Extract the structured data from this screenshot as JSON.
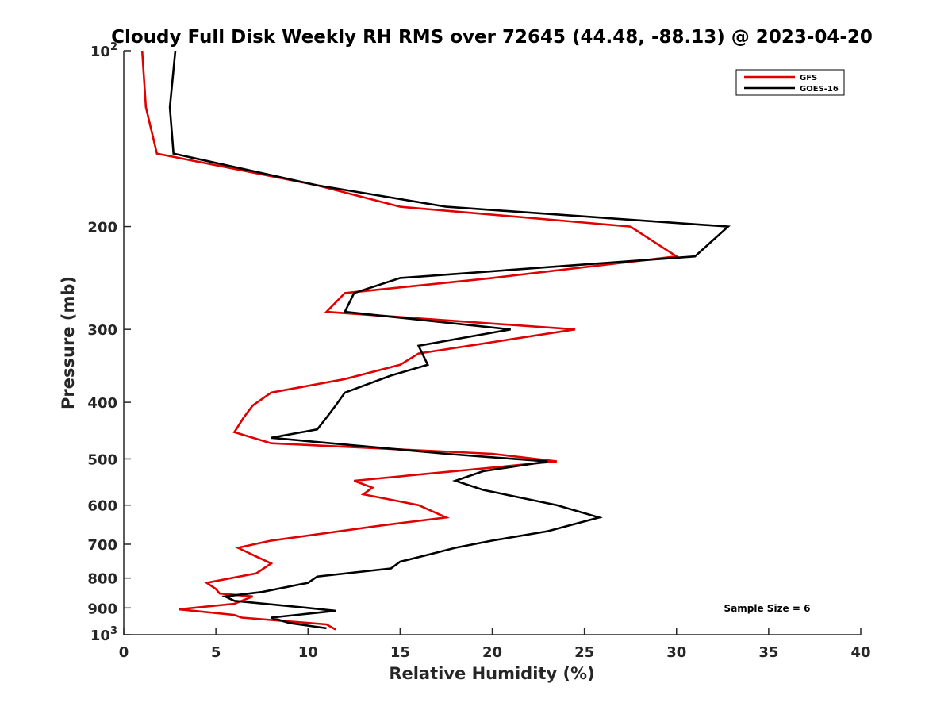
{
  "chart_data": {
    "type": "line",
    "title": "Cloudy Full Disk Weekly RH RMS over 72645 (44.48, -88.13) @ 2023-04-20",
    "xlabel": "Relative Humidity (%)",
    "ylabel": "Pressure (mb)",
    "xlim": [
      0,
      40
    ],
    "ylim": [
      100,
      1000
    ],
    "y_scale": "log",
    "y_reversed": true,
    "x_ticks": [
      "0",
      "5",
      "10",
      "15",
      "20",
      "25",
      "30",
      "35",
      "40"
    ],
    "x_tick_values": [
      0,
      5,
      10,
      15,
      20,
      25,
      30,
      35,
      40
    ],
    "y_ticks": [
      {
        "value": 100,
        "base": "10",
        "exp": "2",
        "label": ""
      },
      {
        "value": 200,
        "label": "200"
      },
      {
        "value": 300,
        "label": "300"
      },
      {
        "value": 400,
        "label": "400"
      },
      {
        "value": 500,
        "label": "500"
      },
      {
        "value": 600,
        "label": "600"
      },
      {
        "value": 700,
        "label": "700"
      },
      {
        "value": 800,
        "label": "800"
      },
      {
        "value": 900,
        "label": "900"
      },
      {
        "value": 1000,
        "base": "10",
        "exp": "3",
        "label": ""
      }
    ],
    "grid": false,
    "legend_position": "top-right",
    "annotation": "Sample Size = 6",
    "series": [
      {
        "name": "GFS",
        "color": "#e00000",
        "points": [
          [
            1.0,
            100
          ],
          [
            1.2,
            125
          ],
          [
            1.8,
            150
          ],
          [
            10.5,
            170
          ],
          [
            15.0,
            185
          ],
          [
            27.5,
            200
          ],
          [
            30.0,
            225
          ],
          [
            20.0,
            245
          ],
          [
            12.0,
            260
          ],
          [
            11.0,
            280
          ],
          [
            24.5,
            300
          ],
          [
            16.0,
            330
          ],
          [
            15.0,
            345
          ],
          [
            12.0,
            365
          ],
          [
            8.0,
            385
          ],
          [
            7.0,
            405
          ],
          [
            6.5,
            425
          ],
          [
            6.0,
            450
          ],
          [
            8.0,
            470
          ],
          [
            20.0,
            490
          ],
          [
            23.5,
            505
          ],
          [
            12.5,
            545
          ],
          [
            13.5,
            560
          ],
          [
            13.0,
            575
          ],
          [
            16.0,
            600
          ],
          [
            17.5,
            630
          ],
          [
            14.0,
            650
          ],
          [
            8.0,
            690
          ],
          [
            6.2,
            710
          ],
          [
            7.2,
            735
          ],
          [
            8.0,
            755
          ],
          [
            7.2,
            785
          ],
          [
            4.5,
            815
          ],
          [
            5.0,
            835
          ],
          [
            5.2,
            850
          ],
          [
            7.0,
            860
          ],
          [
            6.0,
            885
          ],
          [
            3.0,
            905
          ],
          [
            6.0,
            925
          ],
          [
            6.4,
            935
          ],
          [
            11.0,
            960
          ],
          [
            11.5,
            980
          ]
        ]
      },
      {
        "name": "GOES-16",
        "color": "#000000",
        "points": [
          [
            2.8,
            100
          ],
          [
            2.5,
            125
          ],
          [
            2.7,
            150
          ],
          [
            10.5,
            170
          ],
          [
            17.5,
            185
          ],
          [
            32.8,
            200
          ],
          [
            31.0,
            225
          ],
          [
            15.0,
            245
          ],
          [
            12.5,
            260
          ],
          [
            12.0,
            280
          ],
          [
            21.0,
            300
          ],
          [
            16.0,
            320
          ],
          [
            16.5,
            345
          ],
          [
            14.5,
            360
          ],
          [
            12.0,
            385
          ],
          [
            11.5,
            405
          ],
          [
            11.0,
            425
          ],
          [
            10.5,
            445
          ],
          [
            8.0,
            460
          ],
          [
            17.5,
            490
          ],
          [
            23.0,
            505
          ],
          [
            19.5,
            525
          ],
          [
            18.0,
            545
          ],
          [
            19.5,
            565
          ],
          [
            23.5,
            600
          ],
          [
            25.8,
            630
          ],
          [
            25.0,
            640
          ],
          [
            23.0,
            665
          ],
          [
            20.0,
            690
          ],
          [
            18.0,
            710
          ],
          [
            16.5,
            730
          ],
          [
            15.0,
            750
          ],
          [
            14.5,
            770
          ],
          [
            10.5,
            795
          ],
          [
            10.0,
            815
          ],
          [
            7.5,
            845
          ],
          [
            5.5,
            860
          ],
          [
            6.0,
            875
          ],
          [
            10.0,
            900
          ],
          [
            11.5,
            910
          ],
          [
            8.0,
            935
          ],
          [
            9.0,
            955
          ],
          [
            11.0,
            975
          ]
        ]
      }
    ]
  }
}
